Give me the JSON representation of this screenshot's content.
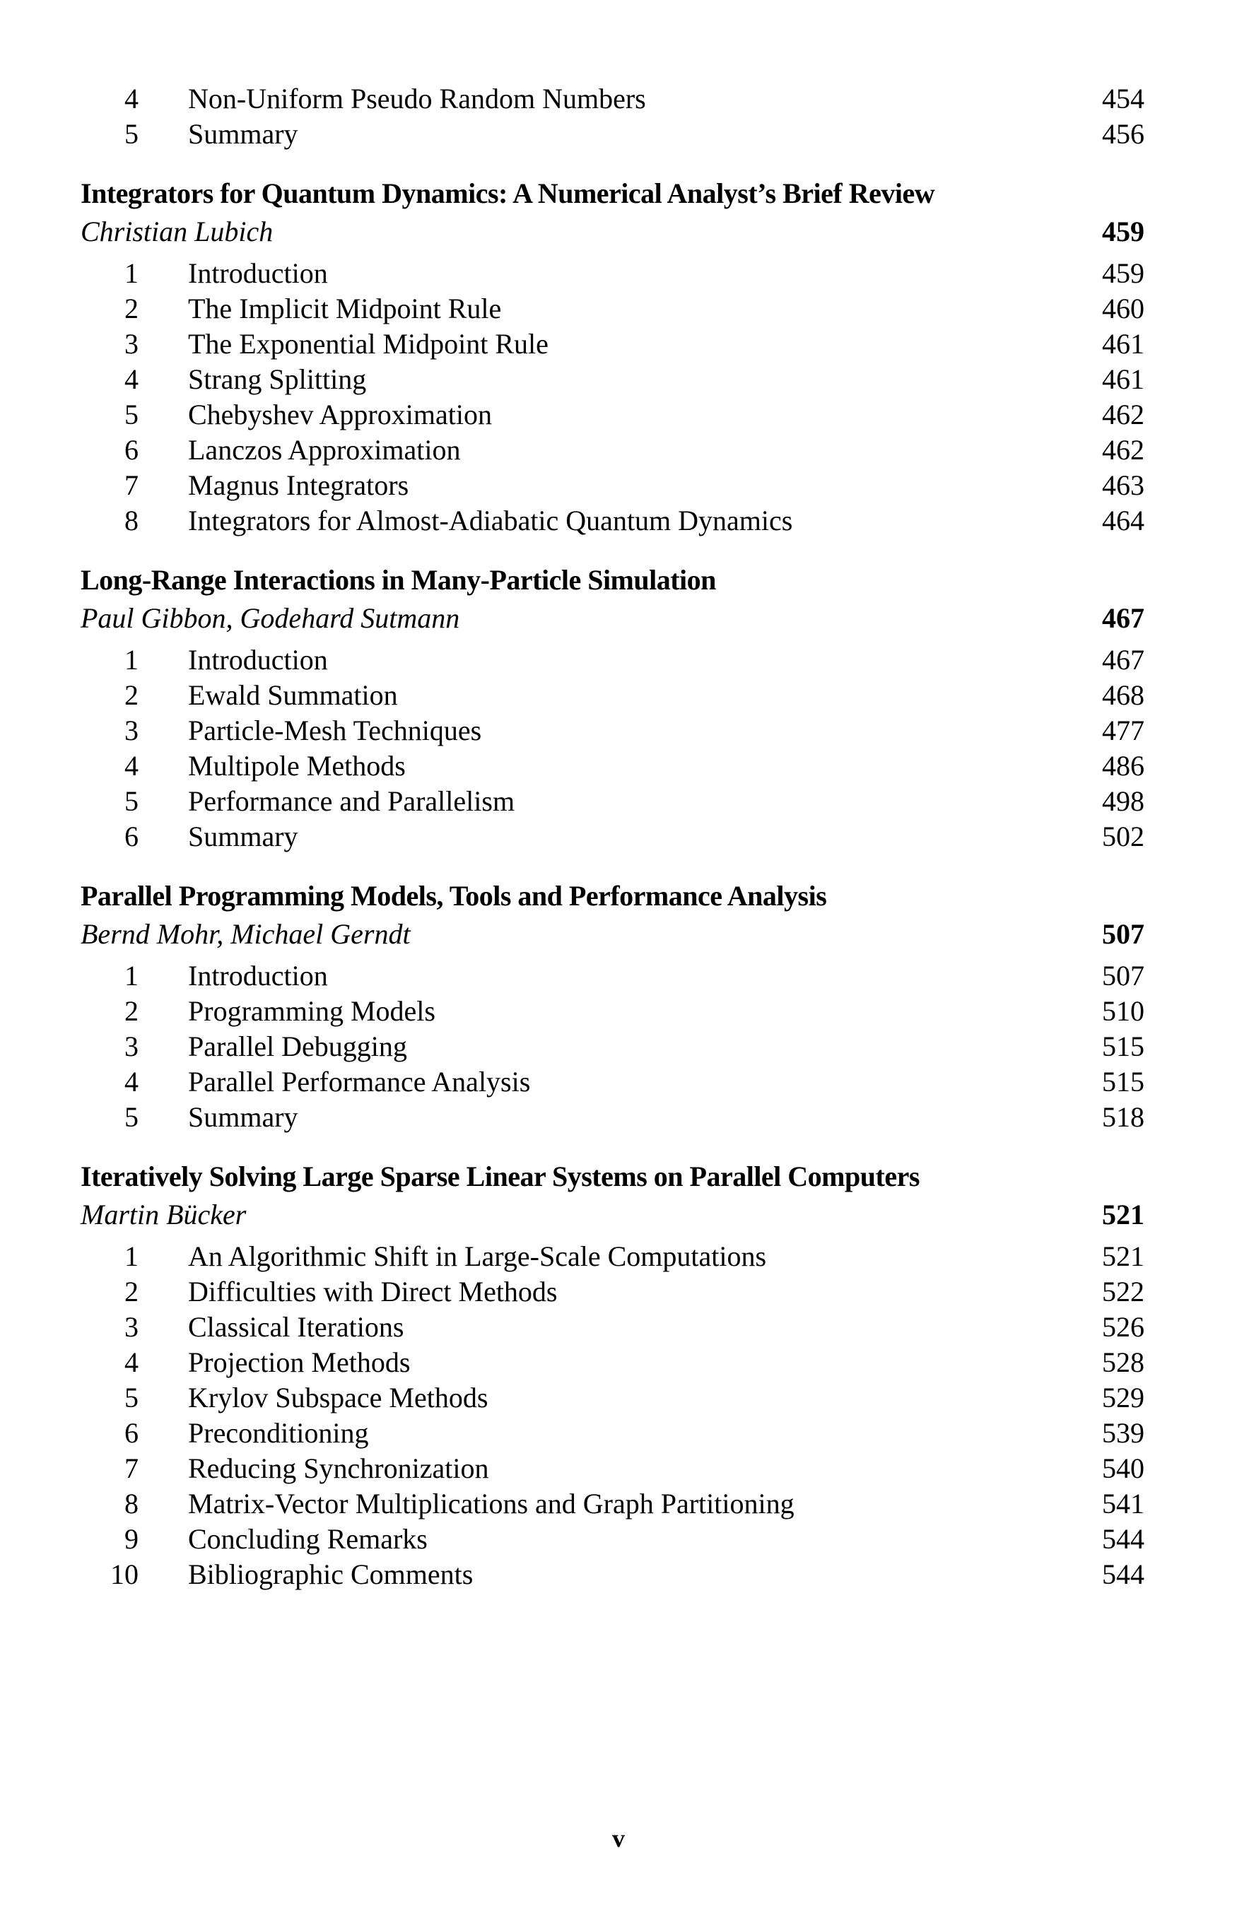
{
  "continued_entries": [
    {
      "num": "4",
      "title": "Non-Uniform Pseudo Random Numbers",
      "page": "454"
    },
    {
      "num": "5",
      "title": "Summary",
      "page": "456"
    }
  ],
  "sections": [
    {
      "title": "Integrators for Quantum Dynamics: A Numerical Analyst’s Brief Review",
      "authors": "Christian Lubich",
      "page": "459",
      "entries": [
        {
          "num": "1",
          "title": "Introduction",
          "page": "459"
        },
        {
          "num": "2",
          "title": "The Implicit Midpoint Rule",
          "page": "460"
        },
        {
          "num": "3",
          "title": "The Exponential Midpoint Rule",
          "page": "461"
        },
        {
          "num": "4",
          "title": "Strang Splitting",
          "page": "461"
        },
        {
          "num": "5",
          "title": "Chebyshev Approximation",
          "page": "462"
        },
        {
          "num": "6",
          "title": "Lanczos Approximation",
          "page": "462"
        },
        {
          "num": "7",
          "title": "Magnus Integrators",
          "page": "463"
        },
        {
          "num": "8",
          "title": "Integrators for Almost-Adiabatic Quantum Dynamics",
          "page": "464"
        }
      ]
    },
    {
      "title": "Long-Range Interactions in Many-Particle Simulation",
      "authors": "Paul Gibbon, Godehard Sutmann",
      "page": "467",
      "entries": [
        {
          "num": "1",
          "title": "Introduction",
          "page": "467"
        },
        {
          "num": "2",
          "title": "Ewald Summation",
          "page": "468"
        },
        {
          "num": "3",
          "title": "Particle-Mesh Techniques",
          "page": "477"
        },
        {
          "num": "4",
          "title": "Multipole Methods",
          "page": "486"
        },
        {
          "num": "5",
          "title": "Performance and Parallelism",
          "page": "498"
        },
        {
          "num": "6",
          "title": "Summary",
          "page": "502"
        }
      ]
    },
    {
      "title": "Parallel Programming Models, Tools and Performance Analysis",
      "authors": "Bernd Mohr, Michael Gerndt",
      "page": "507",
      "entries": [
        {
          "num": "1",
          "title": "Introduction",
          "page": "507"
        },
        {
          "num": "2",
          "title": "Programming Models",
          "page": "510"
        },
        {
          "num": "3",
          "title": "Parallel Debugging",
          "page": "515"
        },
        {
          "num": "4",
          "title": "Parallel Performance Analysis",
          "page": "515"
        },
        {
          "num": "5",
          "title": "Summary",
          "page": "518"
        }
      ]
    },
    {
      "title": "Iteratively Solving Large Sparse Linear Systems on Parallel Computers",
      "authors": "Martin Bücker",
      "page": "521",
      "entries": [
        {
          "num": "1",
          "title": "An Algorithmic Shift in Large-Scale Computations",
          "page": "521"
        },
        {
          "num": "2",
          "title": "Difficulties with Direct Methods",
          "page": "522"
        },
        {
          "num": "3",
          "title": "Classical Iterations",
          "page": "526"
        },
        {
          "num": "4",
          "title": "Projection Methods",
          "page": "528"
        },
        {
          "num": "5",
          "title": "Krylov Subspace Methods",
          "page": "529"
        },
        {
          "num": "6",
          "title": "Preconditioning",
          "page": "539"
        },
        {
          "num": "7",
          "title": "Reducing Synchronization",
          "page": "540"
        },
        {
          "num": "8",
          "title": "Matrix-Vector Multiplications and Graph Partitioning",
          "page": "541"
        },
        {
          "num": "9",
          "title": "Concluding Remarks",
          "page": "544"
        },
        {
          "num": "10",
          "title": "Bibliographic Comments",
          "page": "544"
        }
      ]
    }
  ],
  "footer": {
    "page_number": "v"
  }
}
